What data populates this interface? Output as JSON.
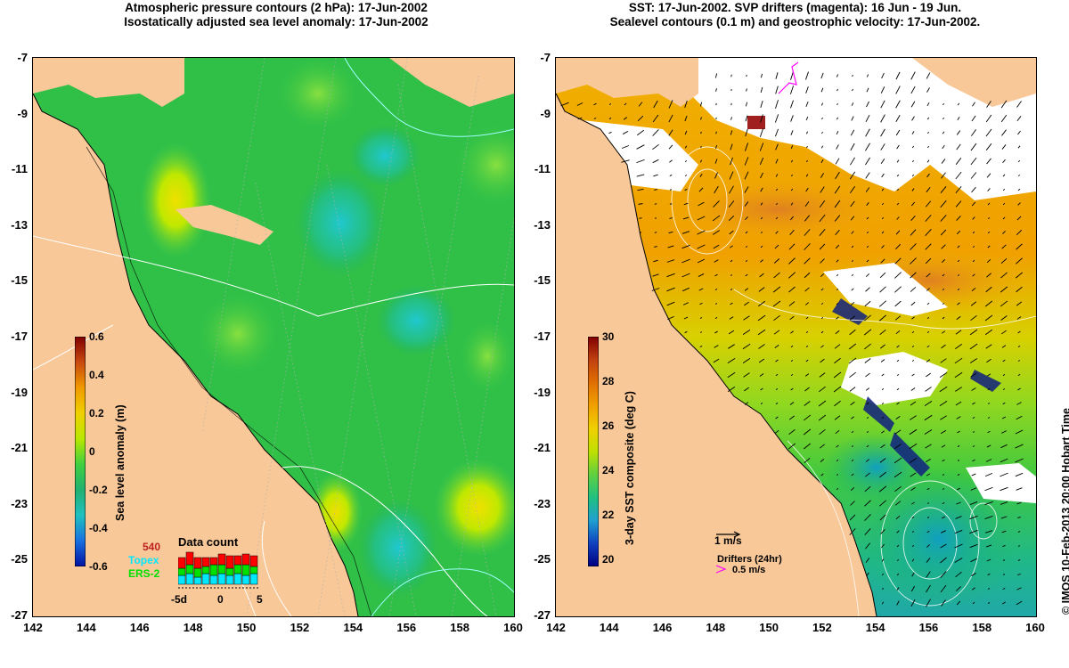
{
  "left_panel": {
    "title_line1": "Atmospheric pressure contours (2 hPa): 17-Jun-2002",
    "title_line2": "Isostatically adjusted sea level anomaly: 17-Jun-2002",
    "colorbar": {
      "title": "Sea level anomaly (m)",
      "ticks": [
        "0.6",
        "0.4",
        "0.2",
        "0",
        "-0.2",
        "-0.4",
        "-0.6"
      ],
      "colors": [
        "#800000",
        "#c84a10",
        "#f09a00",
        "#f0d000",
        "#b8e800",
        "#40d040",
        "#20b070",
        "#20c0c0",
        "#1870e0",
        "#0010a0"
      ]
    },
    "data_count": {
      "title": "Data count",
      "marker_label": "540",
      "topex_label": "Topex",
      "ers_label": "ERS-2",
      "axis_ticks": [
        "-5d",
        "0",
        "5"
      ],
      "topex_color": "#00e8ff",
      "ers_color": "#00e000",
      "gfo_color": "#ff0000"
    }
  },
  "right_panel": {
    "title_line1": "SST: 17-Jun-2002. SVP drifters (magenta): 16 Jun - 19 Jun.",
    "title_line2": "Sealevel contours (0.1 m) and geostrophic velocity: 17-Jun-2002.",
    "colorbar": {
      "title": "3-day SST composite (deg C)",
      "ticks": [
        "30",
        "28",
        "26",
        "24",
        "22",
        "20"
      ],
      "colors": [
        "#800000",
        "#c04010",
        "#e07000",
        "#f0a000",
        "#f0d000",
        "#c0e000",
        "#60d040",
        "#20c080",
        "#20a0d0",
        "#1040c0",
        "#000080"
      ]
    },
    "velocity_scale_label": "1 m/s",
    "drifters_label": "Drifters (24hr)",
    "drifter_speed_label": "0.5 m/s",
    "drifter_color": "#ff00ff"
  },
  "axes": {
    "lat_ticks": [
      "-7",
      "-9",
      "-11",
      "-13",
      "-15",
      "-17",
      "-19",
      "-21",
      "-23",
      "-25",
      "-27"
    ],
    "lon_ticks": [
      "142",
      "144",
      "146",
      "148",
      "150",
      "152",
      "154",
      "156",
      "158",
      "160"
    ],
    "lat_range": [
      -27,
      -7
    ],
    "lon_range": [
      142,
      160
    ]
  },
  "colors": {
    "land": "#f8c898",
    "ocean_base": "#20b848",
    "no_data": "#ffffff"
  },
  "copyright": "© IMOS 10-Feb-2013 20:00 Hobart Time"
}
